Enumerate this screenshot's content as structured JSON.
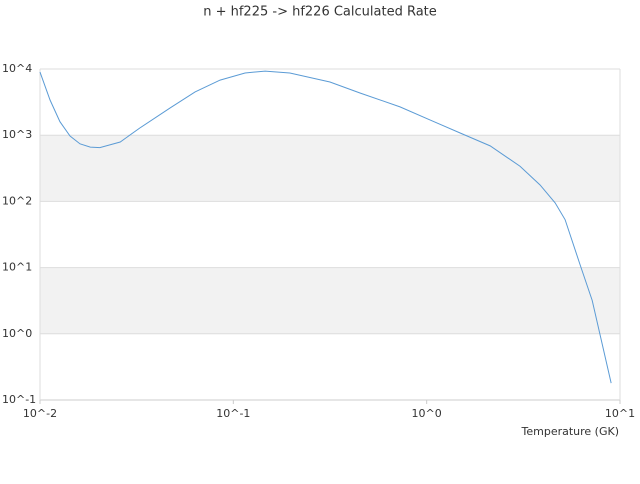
{
  "chart_data": {
    "type": "line",
    "title": "n + hf225 -> hf226 Calculated Rate",
    "x_label": "Temperature (GK)",
    "log_x": true,
    "log_y": true,
    "xlim": [
      0.01,
      10
    ],
    "ylim": [
      0.1,
      10000
    ],
    "xticks": [
      {
        "value": 0.01,
        "label": "10^-2"
      },
      {
        "value": 0.1,
        "label": "10^-1"
      },
      {
        "value": 1,
        "label": "10^0"
      },
      {
        "value": 10,
        "label": "10^1"
      }
    ],
    "yticks": [
      {
        "value": 0.1,
        "label": "10^-1"
      },
      {
        "value": 1,
        "label": "10^0"
      },
      {
        "value": 10,
        "label": "10^1"
      },
      {
        "value": 100,
        "label": "10^2"
      },
      {
        "value": 1000,
        "label": "10^3"
      },
      {
        "value": 10000,
        "label": "10^4"
      }
    ],
    "x": [
      0.01,
      0.01127,
      0.01268,
      0.0143,
      0.0161,
      0.0182,
      0.0204,
      0.026,
      0.0329,
      0.0471,
      0.0634,
      0.0854,
      0.115,
      0.146,
      0.196,
      0.316,
      0.452,
      0.728,
      1.04,
      1.49,
      2.13,
      3.04,
      3.86,
      4.62,
      5.2,
      6.22,
      7.18,
      9.0
    ],
    "series": [
      {
        "color": "#5b9bd5",
        "values": [
          9000,
          3400,
          1600,
          970,
          740,
          660,
          650,
          790,
          1290,
          2580,
          4500,
          6800,
          8700,
          9300,
          8700,
          6360,
          4340,
          2680,
          1700,
          1080,
          690,
          340,
          177,
          95,
          53,
          11,
          3.2,
          0.18
        ]
      }
    ]
  }
}
